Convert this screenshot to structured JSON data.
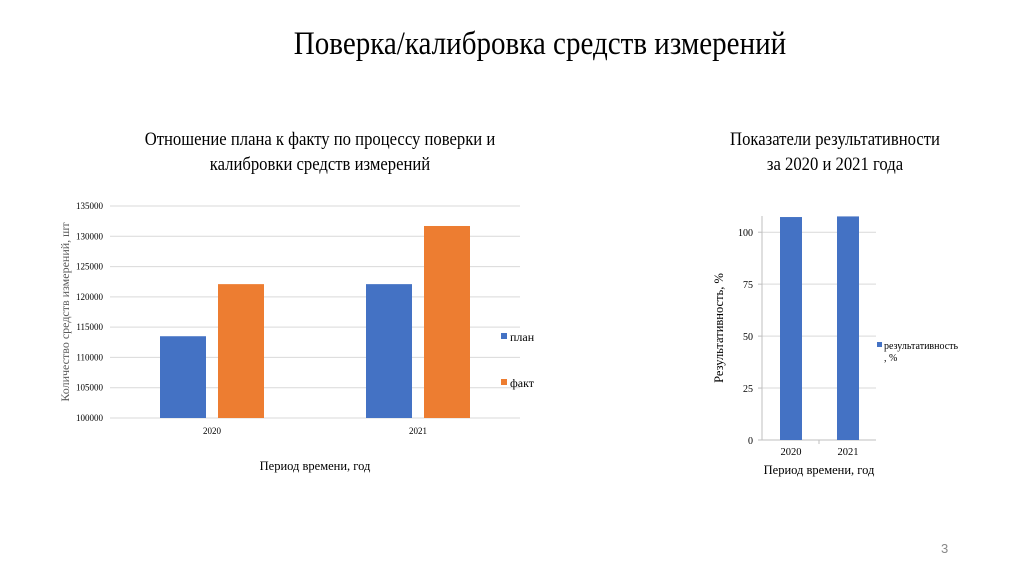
{
  "slide": {
    "title": "Поверка/калибровка средств измерений",
    "page_number": "3"
  },
  "chart_data": [
    {
      "type": "bar",
      "title": "Отношение плана к факту по процессу поверки и калибровки средств измерений",
      "title_lines": [
        "Отношение плана к факту по процессу поверки и",
        "калибровки средств измерений"
      ],
      "categories": [
        "2020",
        "2021"
      ],
      "series": [
        {
          "name": "план",
          "values": [
            113500,
            122100
          ],
          "color": "#4472C4"
        },
        {
          "name": "факт",
          "values": [
            122100,
            131700
          ],
          "color": "#ED7D31"
        }
      ],
      "xlabel": "Период времени, год",
      "ylabel": "Количество средств измерений, шт",
      "ylim": [
        100000,
        135000
      ],
      "yticks": [
        "100000",
        "105000",
        "110000",
        "115000",
        "120000",
        "125000",
        "130000",
        "135000"
      ],
      "grid": true,
      "legend": "right"
    },
    {
      "type": "bar",
      "title": "Показатели результативности за 2020 и 2021 года",
      "title_lines": [
        "Показатели результативности",
        "за 2020 и 2021 года"
      ],
      "categories": [
        "2020",
        "2021"
      ],
      "series": [
        {
          "name": "результативность, %",
          "name_lines": [
            "результативность",
            ", %"
          ],
          "values": [
            107.3,
            107.6
          ],
          "color": "#4472C4"
        }
      ],
      "xlabel": "Период времени, год",
      "ylabel": "Результативность, %",
      "ylim": [
        0,
        107.8
      ],
      "yticks": [
        "0",
        "25",
        "50",
        "75",
        "100"
      ],
      "grid": true,
      "legend": "right"
    }
  ]
}
